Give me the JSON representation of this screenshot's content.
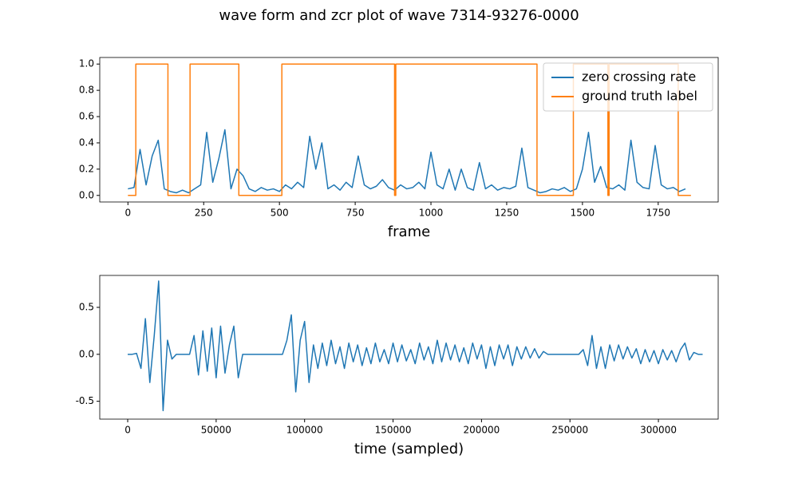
{
  "title": "wave form and zcr plot of wave 7314-93276-0000",
  "chart_data": [
    {
      "type": "line",
      "xlabel": "frame",
      "legend": "upper right",
      "xlim": [
        -93,
        1948
      ],
      "ylim": [
        -0.05,
        1.05
      ],
      "xticks": [
        0,
        250,
        500,
        750,
        1000,
        1250,
        1500,
        1750
      ],
      "yticks": [
        {
          "value": 0,
          "label": "0.0"
        },
        0.2,
        0.4,
        0.6,
        0.8,
        {
          "value": 1,
          "label": "1.0"
        }
      ],
      "series": [
        {
          "name": "zero crossing rate",
          "color": "#1f77b4",
          "x": [
            0,
            20,
            40,
            60,
            80,
            100,
            120,
            140,
            160,
            180,
            200,
            220,
            240,
            260,
            280,
            300,
            320,
            340,
            360,
            380,
            400,
            420,
            440,
            460,
            480,
            500,
            520,
            540,
            560,
            580,
            600,
            620,
            640,
            660,
            680,
            700,
            720,
            740,
            760,
            780,
            800,
            820,
            840,
            860,
            880,
            900,
            920,
            940,
            960,
            980,
            1000,
            1020,
            1040,
            1060,
            1080,
            1100,
            1120,
            1140,
            1160,
            1180,
            1200,
            1220,
            1240,
            1260,
            1280,
            1300,
            1320,
            1340,
            1360,
            1380,
            1400,
            1420,
            1440,
            1460,
            1480,
            1500,
            1520,
            1540,
            1560,
            1580,
            1600,
            1620,
            1640,
            1660,
            1680,
            1700,
            1720,
            1740,
            1760,
            1780,
            1800,
            1820,
            1840
          ],
          "values": [
            0.05,
            0.06,
            0.35,
            0.08,
            0.3,
            0.42,
            0.05,
            0.03,
            0.02,
            0.04,
            0.02,
            0.05,
            0.08,
            0.48,
            0.1,
            0.28,
            0.5,
            0.05,
            0.2,
            0.15,
            0.05,
            0.03,
            0.06,
            0.04,
            0.05,
            0.03,
            0.08,
            0.05,
            0.1,
            0.06,
            0.45,
            0.2,
            0.4,
            0.05,
            0.08,
            0.04,
            0.1,
            0.06,
            0.3,
            0.08,
            0.05,
            0.07,
            0.12,
            0.06,
            0.04,
            0.08,
            0.05,
            0.06,
            0.1,
            0.05,
            0.33,
            0.08,
            0.05,
            0.2,
            0.04,
            0.2,
            0.06,
            0.04,
            0.25,
            0.05,
            0.08,
            0.04,
            0.06,
            0.05,
            0.07,
            0.36,
            0.06,
            0.04,
            0.02,
            0.03,
            0.05,
            0.04,
            0.06,
            0.03,
            0.05,
            0.2,
            0.48,
            0.1,
            0.22,
            0.06,
            0.05,
            0.08,
            0.04,
            0.42,
            0.1,
            0.06,
            0.05,
            0.38,
            0.08,
            0.05,
            0.06,
            0.03,
            0.05
          ]
        },
        {
          "name": "ground truth label",
          "color": "#ff7f0e",
          "x": [
            0,
            26,
            26,
            132,
            132,
            205,
            205,
            366,
            366,
            508,
            508,
            880,
            880,
            884,
            884,
            1350,
            1350,
            1470,
            1470,
            1584,
            1584,
            1588,
            1588,
            1816,
            1816,
            1858
          ],
          "values": [
            0,
            0,
            1,
            1,
            0,
            0,
            1,
            1,
            0,
            0,
            1,
            1,
            0,
            0,
            1,
            1,
            0,
            0,
            1,
            1,
            0,
            0,
            1,
            1,
            0,
            0
          ]
        }
      ]
    },
    {
      "type": "line",
      "xlabel": "time (sampled)",
      "xlim": [
        -15800,
        333800
      ],
      "ylim": [
        -0.69,
        0.84
      ],
      "xticks": [
        0,
        50000,
        100000,
        150000,
        200000,
        250000,
        300000
      ],
      "yticks": [
        -0.5,
        {
          "value": 0,
          "label": "0.0"
        },
        0.5
      ],
      "series": [
        {
          "color": "#1f77b4",
          "x": [
            0,
            2500,
            5000,
            7500,
            10000,
            12500,
            15000,
            17500,
            20000,
            22500,
            25000,
            27500,
            30000,
            32500,
            35000,
            37500,
            40000,
            42500,
            45000,
            47500,
            50000,
            52500,
            55000,
            57500,
            60000,
            62500,
            65000,
            67500,
            70000,
            72500,
            75000,
            77500,
            80000,
            82500,
            85000,
            87500,
            90000,
            92500,
            95000,
            97500,
            100000,
            102500,
            105000,
            107500,
            110000,
            112500,
            115000,
            117500,
            120000,
            122500,
            125000,
            127500,
            130000,
            132500,
            135000,
            137500,
            140000,
            142500,
            145000,
            147500,
            150000,
            152500,
            155000,
            157500,
            160000,
            162500,
            165000,
            167500,
            170000,
            172500,
            175000,
            177500,
            180000,
            182500,
            185000,
            187500,
            190000,
            192500,
            195000,
            197500,
            200000,
            202500,
            205000,
            207500,
            210000,
            212500,
            215000,
            217500,
            220000,
            222500,
            225000,
            227500,
            230000,
            232500,
            235000,
            237500,
            240000,
            242500,
            245000,
            247500,
            250000,
            252500,
            255000,
            257500,
            260000,
            262500,
            265000,
            267500,
            270000,
            272500,
            275000,
            277500,
            280000,
            282500,
            285000,
            287500,
            290000,
            292500,
            295000,
            297500,
            300000,
            302500,
            305000,
            307500,
            310000,
            312500,
            315000,
            317500,
            320000,
            322500,
            325000
          ],
          "values": [
            0,
            0,
            0.01,
            -0.15,
            0.38,
            -0.3,
            0.2,
            0.78,
            -0.6,
            0.15,
            -0.05,
            0,
            0,
            0,
            0,
            0.2,
            -0.22,
            0.25,
            -0.18,
            0.28,
            -0.25,
            0.3,
            -0.2,
            0.1,
            0.3,
            -0.25,
            0,
            0,
            0,
            0,
            0,
            0,
            0,
            0,
            0,
            0,
            0.15,
            0.42,
            -0.4,
            0.15,
            0.35,
            -0.3,
            0.1,
            -0.15,
            0.12,
            -0.12,
            0.15,
            -0.1,
            0.08,
            -0.15,
            0.12,
            -0.08,
            0.1,
            -0.12,
            0.07,
            -0.1,
            0.12,
            -0.08,
            0.05,
            -0.1,
            0.12,
            -0.08,
            0.1,
            -0.07,
            0.05,
            -0.1,
            0.12,
            -0.06,
            0.08,
            -0.1,
            0.15,
            -0.08,
            0.12,
            -0.06,
            0.1,
            -0.08,
            0.07,
            -0.1,
            0.12,
            -0.05,
            0.1,
            -0.15,
            0.08,
            -0.12,
            0.1,
            -0.05,
            0.1,
            -0.12,
            0.08,
            -0.05,
            0.08,
            -0.04,
            0.06,
            -0.04,
            0.03,
            0,
            0,
            0,
            0,
            0,
            0,
            0,
            0,
            0.05,
            -0.12,
            0.2,
            -0.15,
            0.08,
            -0.15,
            0.1,
            -0.07,
            0.1,
            -0.05,
            0.08,
            -0.04,
            0.06,
            -0.1,
            0.05,
            -0.08,
            0.04,
            -0.1,
            0.05,
            -0.06,
            0.04,
            -0.08,
            0.05,
            0.12,
            -0.06,
            0.02,
            0,
            0
          ]
        }
      ]
    }
  ]
}
